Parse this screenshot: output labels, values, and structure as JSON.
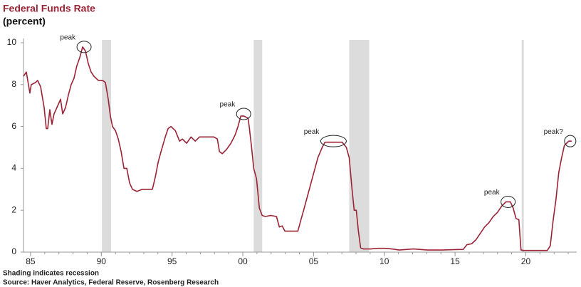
{
  "chart_data": {
    "type": "line",
    "title": "Federal Funds Rate",
    "subtitle": "(percent)",
    "notes": [
      "Shading indicates recession",
      "Source: Haver Analytics, Federal Reserve, Rosenberg Research"
    ],
    "xlim": [
      1984.5,
      2023.6
    ],
    "xticks": [
      {
        "value": 1985,
        "label": "85"
      },
      {
        "value": 1990,
        "label": "90"
      },
      {
        "value": 1995,
        "label": "95"
      },
      {
        "value": 2000,
        "label": "00"
      },
      {
        "value": 2005,
        "label": "05"
      },
      {
        "value": 2010,
        "label": "10"
      },
      {
        "value": 2015,
        "label": "15"
      },
      {
        "value": 2020,
        "label": "20"
      }
    ],
    "ylim": [
      0,
      10
    ],
    "yticks": [
      0,
      2,
      4,
      6,
      8,
      10
    ],
    "grid": false,
    "recession_color": "#dcdcdc",
    "recessions": [
      [
        1990.04,
        1990.69
      ],
      [
        2000.77,
        2001.37
      ],
      [
        2007.52,
        2008.93
      ],
      [
        2019.71,
        2019.86
      ]
    ],
    "annotations": [
      {
        "text": "peak",
        "x": 1988.78,
        "y": 9.8
      },
      {
        "text": "peak",
        "x": 2000.06,
        "y": 6.6
      },
      {
        "text": "peak",
        "x": 2006.41,
        "y": 5.3
      },
      {
        "text": "peak",
        "x": 2018.75,
        "y": 2.4
      },
      {
        "text": "peak?",
        "x": 2023.14,
        "y": 5.3
      }
    ],
    "series": [
      {
        "name": "Federal Funds Rate",
        "color": "#9b2335",
        "x": [
          1984.5,
          1984.7,
          1984.95,
          1985.05,
          1985.35,
          1985.5,
          1985.71,
          1985.96,
          1986.11,
          1986.21,
          1986.36,
          1986.51,
          1986.66,
          1986.86,
          1987.12,
          1987.27,
          1987.47,
          1987.67,
          1987.87,
          1988.07,
          1988.27,
          1988.48,
          1988.68,
          1988.88,
          1989.08,
          1989.28,
          1989.48,
          1989.79,
          1990.09,
          1990.29,
          1990.49,
          1990.64,
          1990.79,
          1991.0,
          1991.2,
          1991.4,
          1991.6,
          1991.8,
          1992.0,
          1992.2,
          1992.51,
          1992.91,
          1993.41,
          1993.61,
          1993.82,
          1994.02,
          1994.22,
          1994.52,
          1994.72,
          1994.92,
          1995.23,
          1995.53,
          1995.73,
          1996.03,
          1996.34,
          1996.64,
          1996.94,
          1997.44,
          1997.95,
          1998.2,
          1998.35,
          1998.55,
          1998.85,
          1999.16,
          1999.46,
          1999.66,
          1999.86,
          2000.06,
          2000.37,
          2000.47,
          2000.62,
          2000.77,
          2000.97,
          2001.17,
          2001.37,
          2001.58,
          2001.98,
          2002.38,
          2002.58,
          2002.78,
          2002.98,
          2003.49,
          2003.89,
          2004.09,
          2004.3,
          2004.5,
          2004.7,
          2004.9,
          2005.1,
          2005.3,
          2005.61,
          2005.81,
          2006.51,
          2007.02,
          2007.32,
          2007.52,
          2007.72,
          2007.87,
          2008.02,
          2008.17,
          2008.33,
          2008.53,
          2009.03,
          2009.54,
          2010.04,
          2010.54,
          2011.05,
          2012.05,
          2013.06,
          2014.07,
          2015.07,
          2015.58,
          2015.83,
          2016.18,
          2016.49,
          2016.79,
          2017.09,
          2017.39,
          2017.7,
          2018.0,
          2018.3,
          2018.6,
          2018.91,
          2019.11,
          2019.31,
          2019.51,
          2019.66,
          2019.86,
          2020.62,
          2021.52,
          2021.73,
          2021.93,
          2022.13,
          2022.33,
          2022.53,
          2022.73,
          2023.04,
          2023.24
        ],
        "values": [
          8.4,
          8.6,
          7.6,
          8.0,
          8.1,
          8.2,
          7.9,
          6.9,
          5.9,
          5.9,
          6.8,
          6.1,
          6.6,
          6.9,
          7.3,
          6.6,
          6.9,
          7.5,
          8.0,
          8.3,
          8.9,
          9.3,
          9.8,
          9.6,
          9.0,
          8.6,
          8.4,
          8.2,
          8.2,
          8.1,
          7.3,
          6.5,
          6.0,
          5.8,
          5.4,
          4.8,
          4.0,
          4.0,
          3.3,
          3.0,
          2.9,
          3.0,
          3.0,
          3.0,
          3.6,
          4.3,
          4.8,
          5.5,
          5.9,
          6.0,
          5.8,
          5.3,
          5.4,
          5.2,
          5.5,
          5.3,
          5.5,
          5.5,
          5.5,
          5.4,
          4.8,
          4.7,
          4.9,
          5.2,
          5.6,
          6.0,
          6.5,
          6.5,
          6.4,
          5.9,
          5.0,
          4.0,
          3.5,
          2.1,
          1.75,
          1.7,
          1.75,
          1.7,
          1.2,
          1.25,
          1.0,
          1.0,
          1.0,
          1.5,
          2.0,
          2.5,
          3.0,
          3.5,
          4.0,
          4.5,
          5.0,
          5.25,
          5.25,
          5.25,
          5.0,
          4.5,
          3.0,
          2.0,
          2.0,
          1.0,
          0.2,
          0.15,
          0.15,
          0.18,
          0.18,
          0.15,
          0.1,
          0.15,
          0.1,
          0.1,
          0.12,
          0.13,
          0.35,
          0.4,
          0.6,
          0.9,
          1.2,
          1.4,
          1.7,
          1.9,
          2.2,
          2.4,
          2.4,
          2.1,
          1.6,
          1.55,
          0.1,
          0.08,
          0.08,
          0.08,
          0.3,
          1.5,
          2.5,
          3.8,
          4.5,
          5.1,
          5.3,
          5.3
        ]
      }
    ]
  }
}
